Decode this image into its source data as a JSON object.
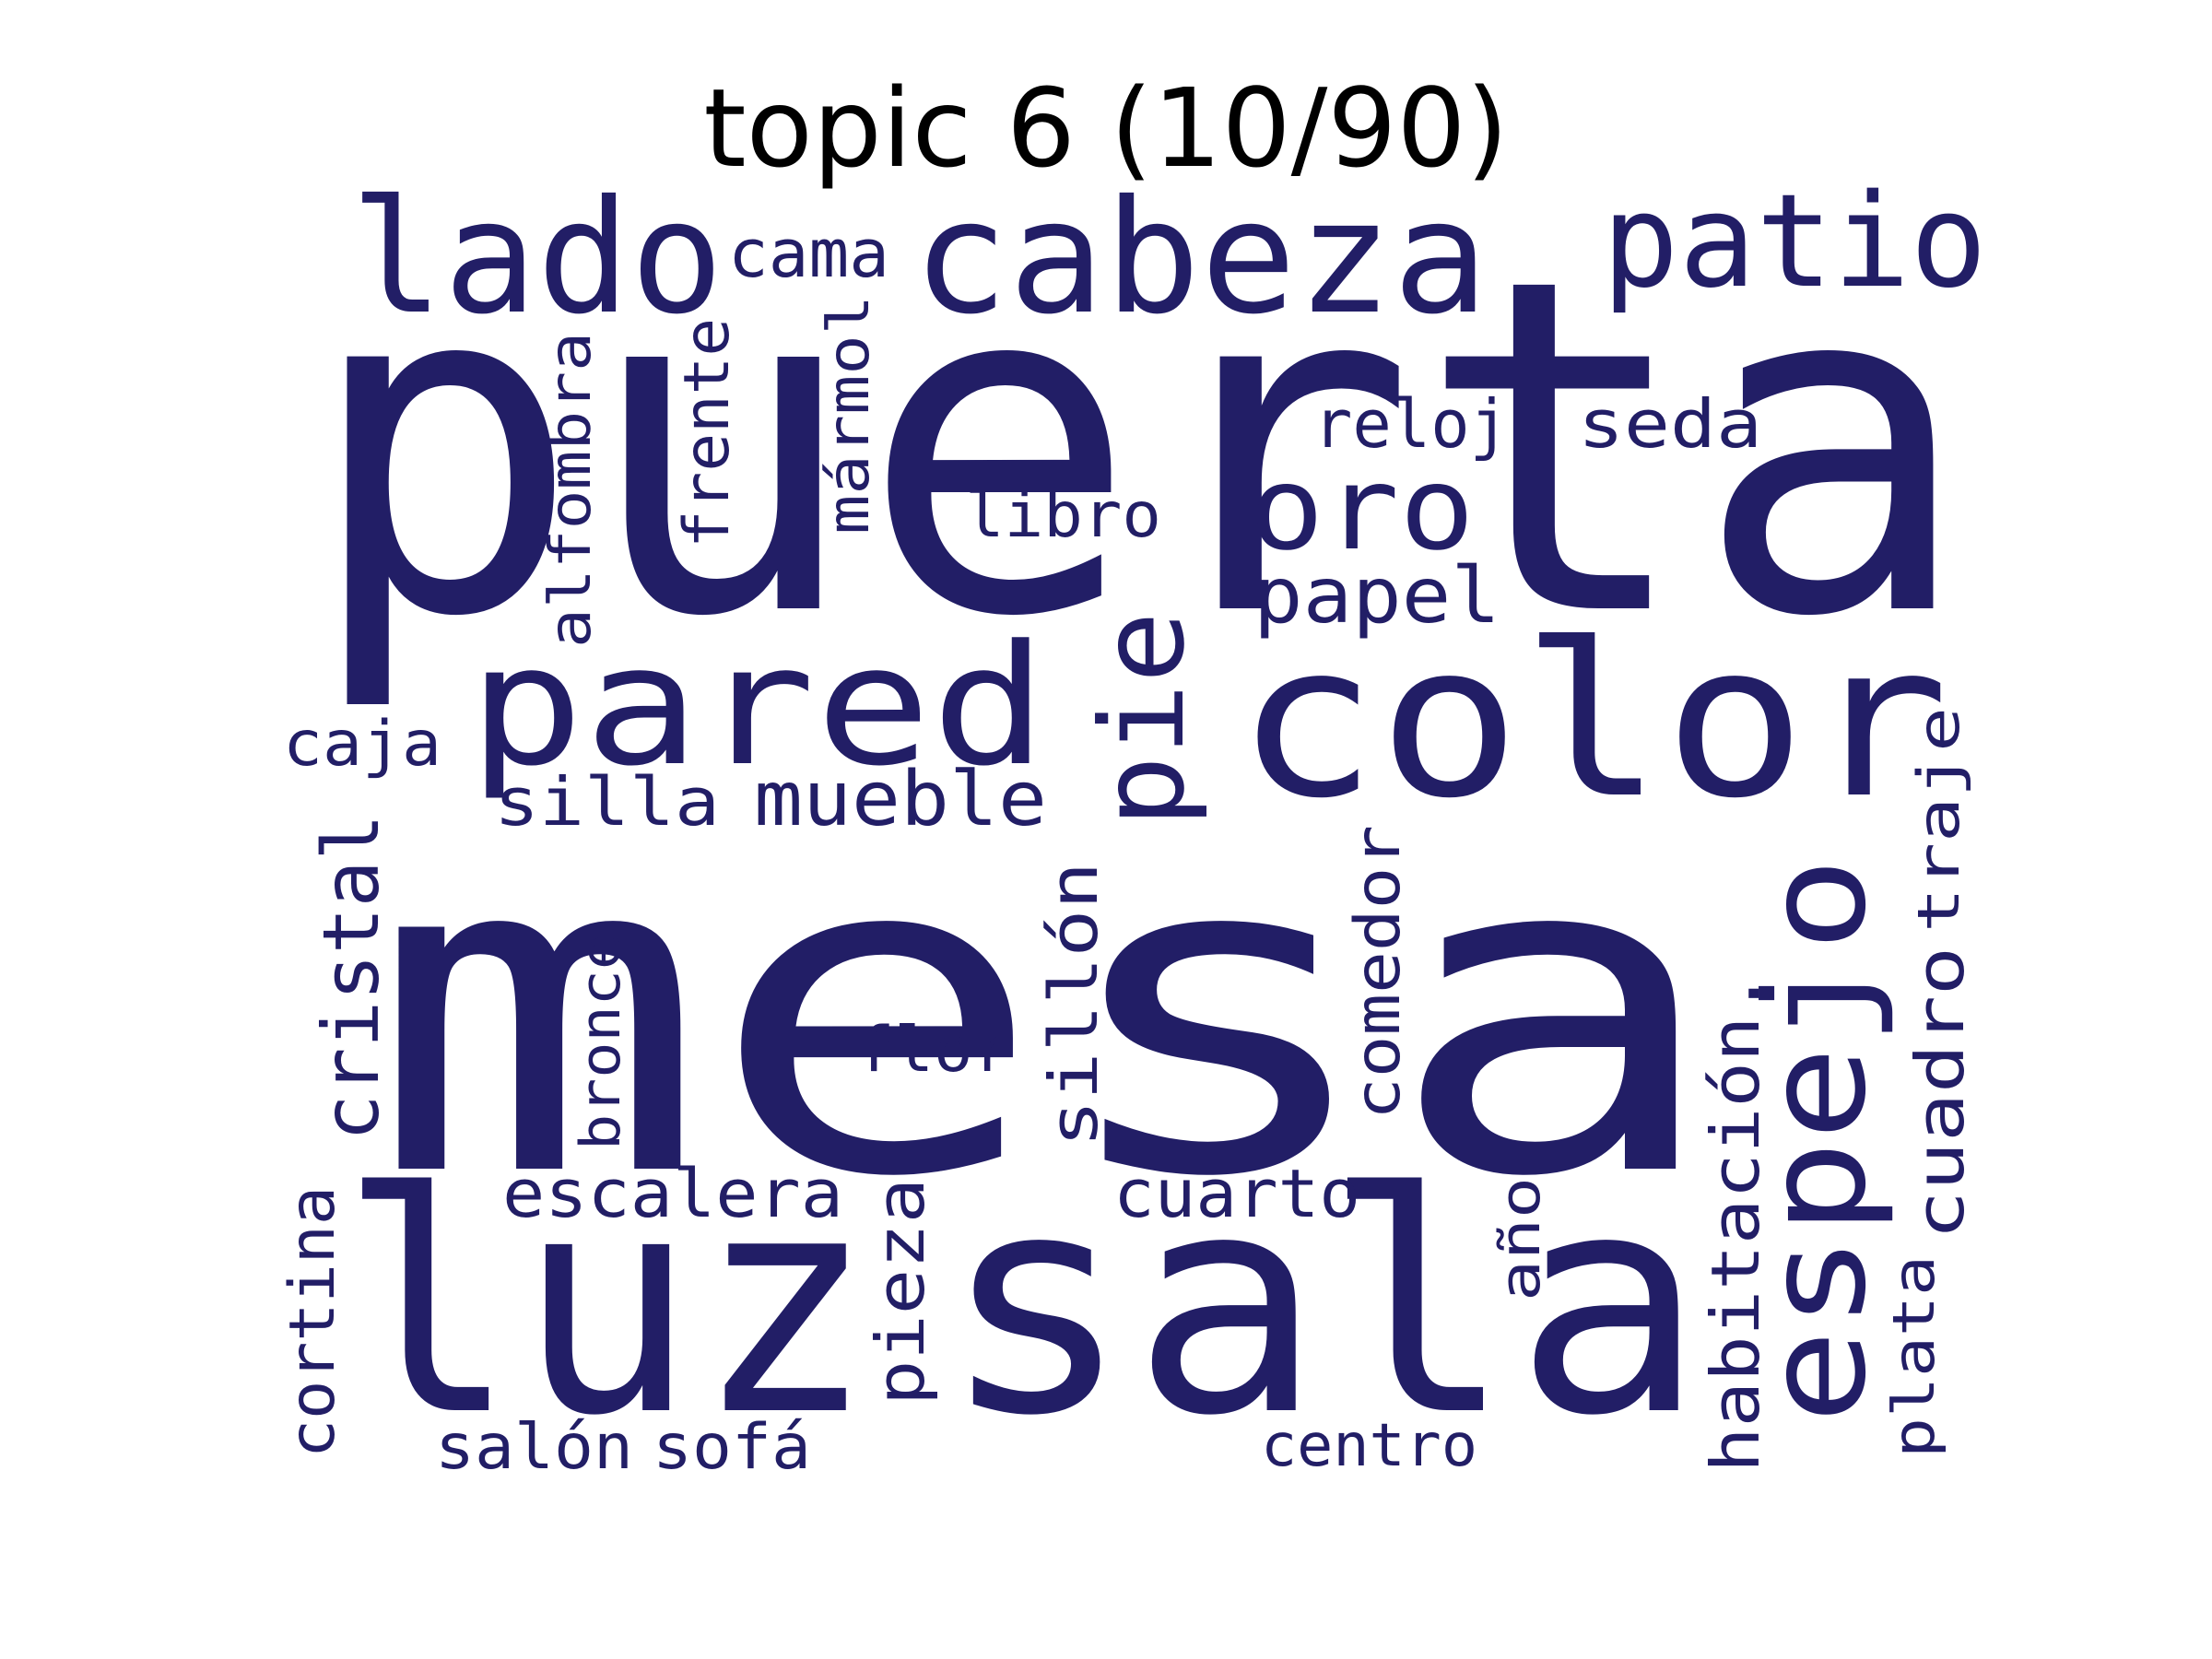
{
  "title": "topic 6 (10/90)",
  "word_color": "#221e66",
  "background_color": "#ffffff",
  "words": [
    {
      "text": "puerta",
      "orientation": "horizontal"
    },
    {
      "text": "mesa",
      "orientation": "horizontal"
    },
    {
      "text": "sala",
      "orientation": "horizontal"
    },
    {
      "text": "luz",
      "orientation": "horizontal"
    },
    {
      "text": "color",
      "orientation": "horizontal"
    },
    {
      "text": "cabeza",
      "orientation": "horizontal"
    },
    {
      "text": "lado",
      "orientation": "horizontal"
    },
    {
      "text": "patio",
      "orientation": "horizontal"
    },
    {
      "text": "pared",
      "orientation": "horizontal"
    },
    {
      "text": "espejo",
      "orientation": "vertical"
    },
    {
      "text": "oro",
      "orientation": "horizontal"
    },
    {
      "text": "pie",
      "orientation": "vertical"
    },
    {
      "text": "cama",
      "orientation": "horizontal"
    },
    {
      "text": "reloj",
      "orientation": "horizontal"
    },
    {
      "text": "seda",
      "orientation": "horizontal"
    },
    {
      "text": "libro",
      "orientation": "horizontal"
    },
    {
      "text": "papel",
      "orientation": "horizontal"
    },
    {
      "text": "mármol",
      "orientation": "vertical"
    },
    {
      "text": "frente",
      "orientation": "vertical"
    },
    {
      "text": "alfombra",
      "orientation": "vertical"
    },
    {
      "text": "caja",
      "orientation": "horizontal"
    },
    {
      "text": "silla",
      "orientation": "horizontal"
    },
    {
      "text": "mueble",
      "orientation": "horizontal"
    },
    {
      "text": "cristal",
      "orientation": "vertical"
    },
    {
      "text": "bronce",
      "orientation": "vertical"
    },
    {
      "text": "flor",
      "orientation": "horizontal"
    },
    {
      "text": "sillón",
      "orientation": "vertical"
    },
    {
      "text": "comedor",
      "orientation": "vertical"
    },
    {
      "text": "traje",
      "orientation": "vertical"
    },
    {
      "text": "cuadro",
      "orientation": "vertical"
    },
    {
      "text": "habitación.",
      "orientation": "vertical"
    },
    {
      "text": "escalera",
      "orientation": "horizontal"
    },
    {
      "text": "cuarto",
      "orientation": "horizontal"
    },
    {
      "text": "pieza",
      "orientation": "vertical"
    },
    {
      "text": "año",
      "orientation": "vertical"
    },
    {
      "text": "cortina",
      "orientation": "vertical"
    },
    {
      "text": "plata",
      "orientation": "vertical"
    },
    {
      "text": "salón",
      "orientation": "horizontal"
    },
    {
      "text": "sofá",
      "orientation": "horizontal"
    },
    {
      "text": "centro",
      "orientation": "horizontal"
    }
  ]
}
